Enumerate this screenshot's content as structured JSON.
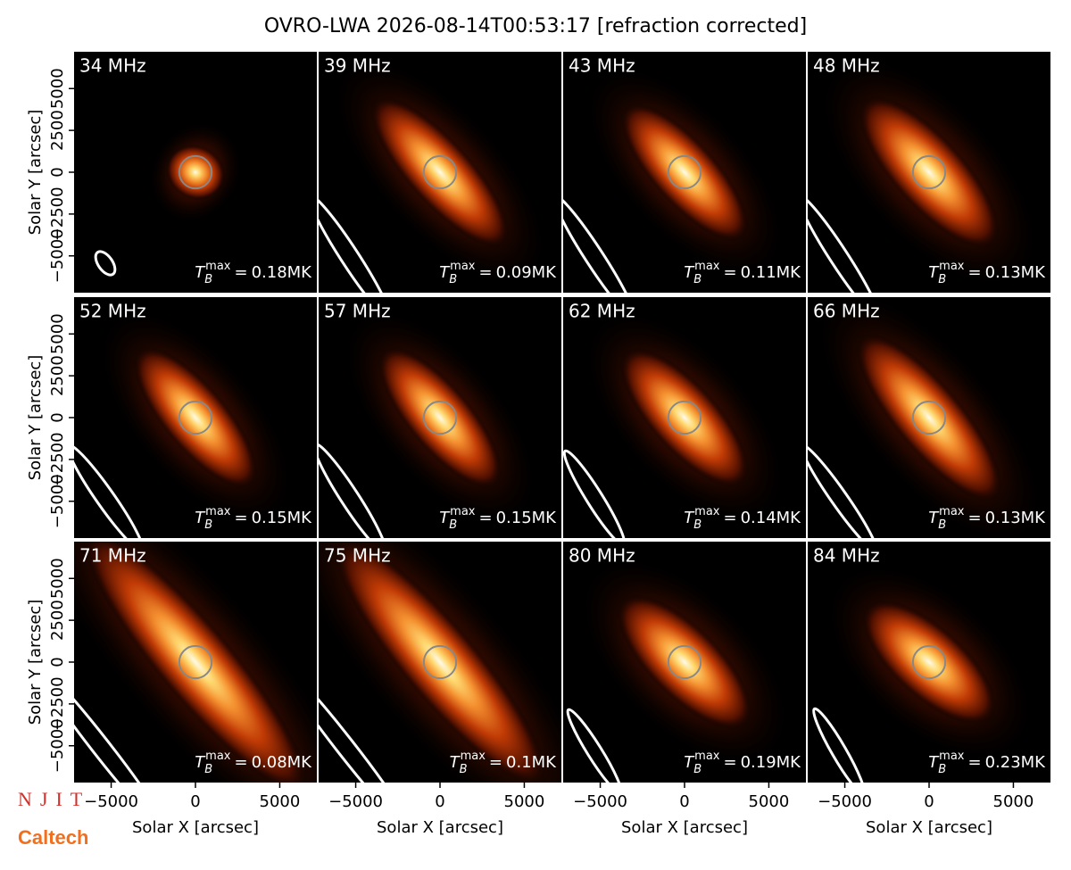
{
  "title": "OVRO-LWA 2026-08-14T00:53:17 [refraction corrected]",
  "logos": [
    "NJIT",
    "Caltech"
  ],
  "chart_data": {
    "type": "image-grid",
    "xlabel": "Solar X [arcsec]",
    "ylabel": "Solar Y [arcsec]",
    "xlim": [
      -7200,
      7200
    ],
    "ylim": [
      -7200,
      7200
    ],
    "xticks": [
      {
        "value": -5000,
        "label": "−5000"
      },
      0,
      5000
    ],
    "yticks": [
      {
        "value": -5000,
        "label": "−5000"
      },
      {
        "value": -2500,
        "label": "−2500"
      },
      0,
      2500,
      5000
    ],
    "tb_symbol": "T",
    "tb_subscript": "B",
    "tb_superscript": "max",
    "tb_equals": "=",
    "tb_unit": "MK",
    "panels": [
      {
        "label": "34 MHz",
        "tb_max": 0.18
      },
      {
        "label": "39 MHz",
        "tb_max": 0.09
      },
      {
        "label": "43 MHz",
        "tb_max": 0.11
      },
      {
        "label": "48 MHz",
        "tb_max": 0.13
      },
      {
        "label": "52 MHz",
        "tb_max": 0.15
      },
      {
        "label": "57 MHz",
        "tb_max": 0.15
      },
      {
        "label": "62 MHz",
        "tb_max": 0.14
      },
      {
        "label": "66 MHz",
        "tb_max": 0.13
      },
      {
        "label": "71 MHz",
        "tb_max": 0.08
      },
      {
        "label": "75 MHz",
        "tb_max": 0.1
      },
      {
        "label": "80 MHz",
        "tb_max": 0.19
      },
      {
        "label": "84 MHz",
        "tb_max": 0.23
      }
    ]
  }
}
